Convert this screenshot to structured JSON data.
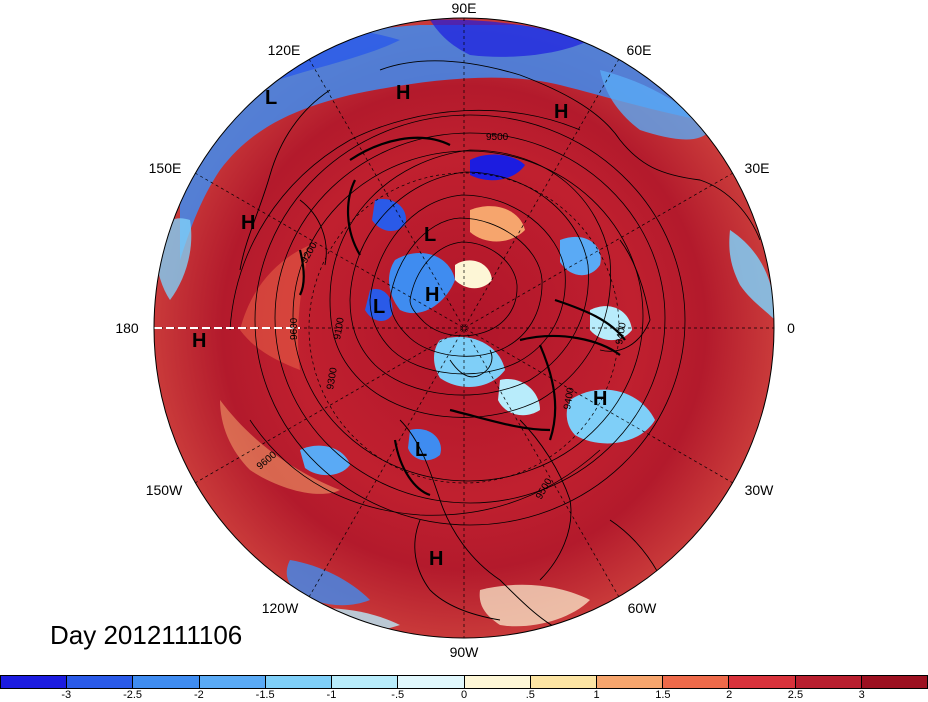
{
  "title": "Day 2012111106",
  "longitude_labels": {
    "e90": "90E",
    "e60": "60E",
    "e30": "30E",
    "zero": "0",
    "w30": "30W",
    "w60": "60W",
    "w90": "90W",
    "w120": "120W",
    "w150": "150W",
    "d180": "180",
    "e150": "150E",
    "e120": "120E"
  },
  "pressure_centers": {
    "H": "H",
    "L": "L"
  },
  "contour_labels": {
    "c9500": "9500",
    "c9200": "9200",
    "c9600": "9600",
    "c9300": "9300",
    "c9400": "9400",
    "c9100": "9100"
  },
  "colorbar": {
    "labels": [
      "-3",
      "-2.5",
      "-2",
      "-1.5",
      "-1",
      "-.5",
      "0",
      ".5",
      "1",
      "1.5",
      "2",
      "2.5",
      "3"
    ],
    "colors": [
      "#1c1ce0",
      "#2a5ae8",
      "#3f8cf0",
      "#5aaaf5",
      "#7fcff8",
      "#b8ecfb",
      "#e0f7fc",
      "#fdf6d6",
      "#fce4a3",
      "#f6a56d",
      "#ee6a4a",
      "#d8323b",
      "#b81e2e",
      "#9c1020"
    ]
  }
}
